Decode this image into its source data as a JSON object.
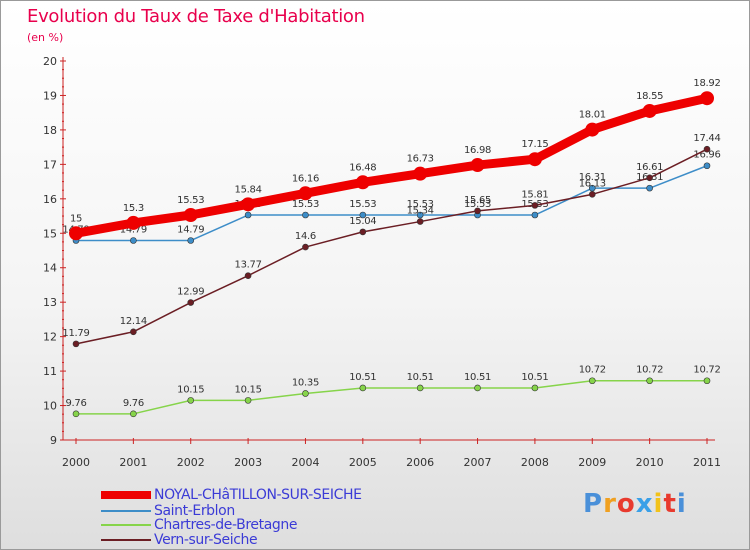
{
  "header": {
    "title": "Evolution du Taux de Taxe d'Habitation",
    "unit": "(en %)"
  },
  "logo": {
    "text": "Proxiti",
    "colors": [
      "#4a90d9",
      "#f0a020",
      "#e83a2e",
      "#3aa0e8",
      "#f2c21a",
      "#e83a2e",
      "#4a90d9"
    ]
  },
  "chart_data": {
    "type": "line",
    "title": "Evolution du Taux de Taxe d'Habitation",
    "ylabel": "(en %)",
    "xlabel": "",
    "x": [
      "2000",
      "2001",
      "2002",
      "2003",
      "2004",
      "2005",
      "2006",
      "2007",
      "2008",
      "2009",
      "2010",
      "2011"
    ],
    "ylim": [
      9,
      20
    ],
    "yticks": [
      "9",
      "10",
      "11",
      "12",
      "13",
      "14",
      "15",
      "16",
      "17",
      "18",
      "19",
      "20"
    ],
    "grid": false,
    "legend_position": "bottom-left",
    "series": [
      {
        "name": "NOYAL-CHâTILLON-SUR-SEICHE",
        "color": "#ee0000",
        "values": [
          15,
          15.3,
          15.53,
          15.84,
          16.16,
          16.48,
          16.73,
          16.98,
          17.15,
          18.01,
          18.55,
          18.92
        ],
        "labels": [
          "15",
          "15.3",
          "15.53",
          "15.84",
          "16.16",
          "16.48",
          "16.73",
          "16.98",
          "17.15",
          "18.01",
          "18.55",
          "18.92"
        ]
      },
      {
        "name": "Saint-Erblon",
        "color": "#3d8dc8",
        "values": [
          14.79,
          14.79,
          14.79,
          15.53,
          15.53,
          15.53,
          15.53,
          15.53,
          15.53,
          16.31,
          16.31,
          16.96
        ],
        "labels": [
          "14.79",
          "14.79",
          "14.79",
          "15.53",
          "15.53",
          "15.53",
          "15.53",
          "15.53",
          "15.53",
          "16.31",
          "16.31",
          "16.96"
        ]
      },
      {
        "name": "Chartres-de-Bretagne",
        "color": "#86d44a",
        "values": [
          9.76,
          9.76,
          10.15,
          10.15,
          10.35,
          10.51,
          10.51,
          10.51,
          10.51,
          10.72,
          10.72,
          10.72
        ],
        "labels": [
          "9.76",
          "9.76",
          "10.15",
          "10.15",
          "10.35",
          "10.51",
          "10.51",
          "10.51",
          "10.51",
          "10.72",
          "10.72",
          "10.72"
        ]
      },
      {
        "name": "Vern-sur-Seiche",
        "color": "#6b1e24",
        "values": [
          11.79,
          12.14,
          12.99,
          13.77,
          14.6,
          15.04,
          15.34,
          15.65,
          15.81,
          16.13,
          16.61,
          17.44
        ],
        "labels": [
          "11.79",
          "12.14",
          "12.99",
          "13.77",
          "14.6",
          "15.04",
          "15.34",
          "15.65",
          "15.81",
          "16.13",
          "16.61",
          "17.44"
        ]
      }
    ]
  }
}
